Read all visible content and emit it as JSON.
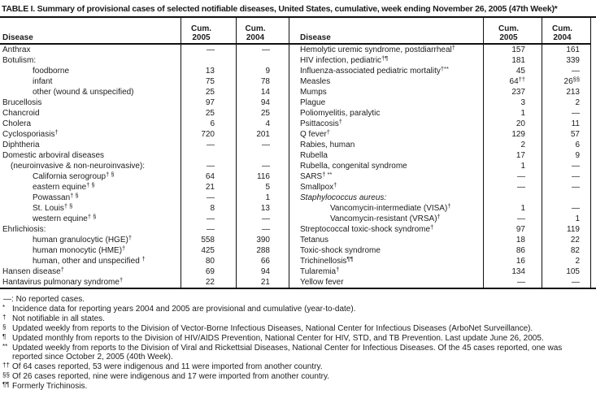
{
  "title": "TABLE I. Summary of provisional cases of selected notifiable diseases, United States, cumulative, week ending November 26, 2005 (47th Week)*",
  "colors": {
    "text": "#1c1c1c",
    "rule": "#111111",
    "background": "#ffffff"
  },
  "header": {
    "disease": "Disease",
    "cum": "Cum.",
    "y2005": "2005",
    "y2004": "2004"
  },
  "left_rows": [
    {
      "label": "Anthrax",
      "indent": 0,
      "v2005": "—",
      "v2004": "—"
    },
    {
      "label": "Botulism:",
      "indent": 0,
      "v2005": "",
      "v2004": ""
    },
    {
      "label": "foodborne",
      "indent": 2,
      "v2005": "13",
      "v2004": "9"
    },
    {
      "label": "infant",
      "indent": 2,
      "v2005": "75",
      "v2004": "78"
    },
    {
      "label": "other (wound & unspecified)",
      "indent": 2,
      "v2005": "25",
      "v2004": "14"
    },
    {
      "label": "Brucellosis",
      "indent": 0,
      "v2005": "97",
      "v2004": "94"
    },
    {
      "label": "Chancroid",
      "indent": 0,
      "v2005": "25",
      "v2004": "25"
    },
    {
      "label": "Cholera",
      "indent": 0,
      "v2005": "6",
      "v2004": "4"
    },
    {
      "label": "Cyclosporiasis",
      "sup": "†",
      "indent": 0,
      "v2005": "720",
      "v2004": "201"
    },
    {
      "label": "Diphtheria",
      "indent": 0,
      "v2005": "—",
      "v2004": "—"
    },
    {
      "label": "Domestic arboviral diseases",
      "indent": 0,
      "v2005": "",
      "v2004": ""
    },
    {
      "label": "(neuroinvasive & non-neuroinvasive):",
      "indent": 1,
      "v2005": "—",
      "v2004": "—"
    },
    {
      "label": "California serogroup",
      "sup": "† §",
      "indent": 2,
      "v2005": "64",
      "v2004": "116"
    },
    {
      "label": "eastern equine",
      "sup": "† §",
      "indent": 2,
      "v2005": "21",
      "v2004": "5"
    },
    {
      "label": "Powassan",
      "sup": "† §",
      "indent": 2,
      "v2005": "—",
      "v2004": "1"
    },
    {
      "label": "St. Louis",
      "sup": "† §",
      "indent": 2,
      "v2005": "8",
      "v2004": "13"
    },
    {
      "label": "western equine",
      "sup": "† §",
      "indent": 2,
      "v2005": "—",
      "v2004": "—"
    },
    {
      "label": "Ehrlichiosis:",
      "indent": 0,
      "v2005": "—",
      "v2004": "—"
    },
    {
      "label": "human granulocytic (HGE)",
      "sup": "†",
      "indent": 2,
      "v2005": "558",
      "v2004": "390"
    },
    {
      "label": "human monocytic (HME)",
      "sup": "†",
      "indent": 2,
      "v2005": "425",
      "v2004": "288"
    },
    {
      "label": "human, other and unspecified ",
      "sup": "†",
      "indent": 2,
      "v2005": "80",
      "v2004": "66"
    },
    {
      "label": "Hansen disease",
      "sup": "†",
      "indent": 0,
      "v2005": "69",
      "v2004": "94"
    },
    {
      "label": "Hantavirus pulmonary syndrome",
      "sup": "†",
      "indent": 0,
      "v2005": "22",
      "v2004": "21"
    }
  ],
  "right_rows": [
    {
      "label": "Hemolytic uremic syndrome, postdiarrheal",
      "sup": "†",
      "indent": 0,
      "v2005": "157",
      "v2004": "161"
    },
    {
      "label": "HIV infection, pediatric",
      "sup": "†¶",
      "indent": 0,
      "v2005": "181",
      "v2004": "339"
    },
    {
      "label": "Influenza-associated pediatric mortality",
      "sup": "†**",
      "indent": 0,
      "v2005": "45",
      "v2004": "—"
    },
    {
      "label": "Measles",
      "indent": 0,
      "v2005": "64",
      "v2005_sup": "††",
      "v2004": "26",
      "v2004_sup": "§§"
    },
    {
      "label": "Mumps",
      "indent": 0,
      "v2005": "237",
      "v2004": "213"
    },
    {
      "label": "Plague",
      "indent": 0,
      "v2005": "3",
      "v2004": "2"
    },
    {
      "label": "Poliomyelitis, paralytic",
      "indent": 0,
      "v2005": "1",
      "v2004": "—"
    },
    {
      "label": "Psittacosis",
      "sup": "†",
      "indent": 0,
      "v2005": "20",
      "v2004": "11"
    },
    {
      "label": "Q fever",
      "sup": "†",
      "indent": 0,
      "v2005": "129",
      "v2004": "57"
    },
    {
      "label": "Rabies, human",
      "indent": 0,
      "v2005": "2",
      "v2004": "6"
    },
    {
      "label": "Rubella",
      "indent": 0,
      "v2005": "17",
      "v2004": "9"
    },
    {
      "label": "Rubella, congenital syndrome",
      "indent": 0,
      "v2005": "1",
      "v2004": "—"
    },
    {
      "label": "SARS",
      "sup": "† **",
      "indent": 0,
      "v2005": "—",
      "v2004": "—"
    },
    {
      "label": "Smallpox",
      "sup": "†",
      "indent": 0,
      "v2005": "—",
      "v2004": "—"
    },
    {
      "label": "Staphylococcus aureus:",
      "italic": true,
      "indent": 0,
      "v2005": "",
      "v2004": ""
    },
    {
      "label": "Vancomycin-intermediate (VISA)",
      "sup": "†",
      "indent": 2,
      "v2005": "1",
      "v2004": "—"
    },
    {
      "label": "Vancomycin-resistant (VRSA)",
      "sup": "†",
      "indent": 2,
      "v2005": "—",
      "v2004": "1"
    },
    {
      "label": "Streptococcal toxic-shock syndrome",
      "sup": "†",
      "indent": 0,
      "v2005": "97",
      "v2004": "119"
    },
    {
      "label": "Tetanus",
      "indent": 0,
      "v2005": "18",
      "v2004": "22"
    },
    {
      "label": "Toxic-shock syndrome",
      "indent": 0,
      "v2005": "86",
      "v2004": "82"
    },
    {
      "label": "Trichinellosis",
      "sup": "¶¶",
      "indent": 0,
      "v2005": "16",
      "v2004": "2"
    },
    {
      "label": "Tularemia",
      "sup": "†",
      "indent": 0,
      "v2005": "134",
      "v2004": "105"
    },
    {
      "label": "Yellow fever",
      "indent": 0,
      "v2005": "—",
      "v2004": "—"
    }
  ],
  "footnotes": [
    {
      "marker": "—:",
      "flat": true,
      "text": "No reported cases."
    },
    {
      "marker": "*",
      "text": "Incidence data for reporting years 2004 and 2005 are provisional and cumulative (year-to-date)."
    },
    {
      "marker": "†",
      "text": "Not notifiable in all states."
    },
    {
      "marker": "§",
      "text": "Updated weekly from reports to the Division of Vector-Borne Infectious Diseases, National Center for Infectious Diseases (ArboNet Surveillance)."
    },
    {
      "marker": "¶",
      "text": "Updated monthly from reports to the Division of HIV/AIDS Prevention, National Center for HIV, STD, and TB Prevention. Last update June 26, 2005."
    },
    {
      "marker": "**",
      "text": "Updated weekly from reports to the Division of Viral and Rickettsial Diseases, National Center for Infectious Diseases. Of the 45 cases reported, one was",
      "line2": "reported since October 2, 2005 (40th Week)."
    },
    {
      "marker": "††",
      "text": "Of 64 cases reported, 53 were indigenous and 11 were imported from another country."
    },
    {
      "marker": "§§",
      "text": "Of 26 cases reported, nine were indigenous and 17 were imported from another country."
    },
    {
      "marker": "¶¶",
      "text": "Formerly Trichinosis."
    }
  ]
}
